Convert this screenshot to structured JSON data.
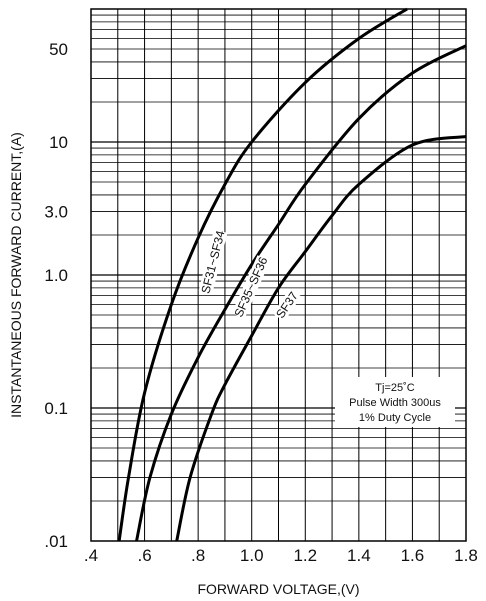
{
  "chart_data": {
    "type": "line",
    "title": "",
    "xlabel": "FORWARD VOLTAGE,(V)",
    "ylabel": "INSTANTANEOUS FORWARD CURRENT,(A)",
    "xlim": [
      0.4,
      1.8
    ],
    "ylim": [
      0.01,
      100
    ],
    "y_scale": "log",
    "grid": true,
    "x_ticks": [
      {
        "value": 0.4,
        "label": ".4"
      },
      {
        "value": 0.6,
        "label": ".6"
      },
      {
        "value": 0.8,
        "label": ".8"
      },
      {
        "value": 1.0,
        "label": "1.0"
      },
      {
        "value": 1.2,
        "label": "1.2"
      },
      {
        "value": 1.4,
        "label": "1.4"
      },
      {
        "value": 1.6,
        "label": "1.6"
      },
      {
        "value": 1.8,
        "label": "1.8"
      }
    ],
    "y_ticks": [
      {
        "value": 0.01,
        "label": ".01"
      },
      {
        "value": 0.1,
        "label": "0.1"
      },
      {
        "value": 1.0,
        "label": "1.0"
      },
      {
        "value": 3.0,
        "label": "3.0"
      },
      {
        "value": 10,
        "label": "10"
      },
      {
        "value": 50,
        "label": "50"
      }
    ],
    "series": [
      {
        "name": "SF31~SF34",
        "points": [
          [
            0.505,
            0.01
          ],
          [
            0.54,
            0.03
          ],
          [
            0.6,
            0.13
          ],
          [
            0.7,
            0.6
          ],
          [
            0.8,
            1.9
          ],
          [
            0.9,
            4.8
          ],
          [
            1.0,
            10
          ],
          [
            1.2,
            28
          ],
          [
            1.4,
            60
          ],
          [
            1.58,
            100
          ]
        ]
      },
      {
        "name": "SF35~SF36",
        "points": [
          [
            0.57,
            0.01
          ],
          [
            0.62,
            0.03
          ],
          [
            0.7,
            0.09
          ],
          [
            0.8,
            0.24
          ],
          [
            0.9,
            0.55
          ],
          [
            1.0,
            1.2
          ],
          [
            1.1,
            2.4
          ],
          [
            1.2,
            4.8
          ],
          [
            1.4,
            15
          ],
          [
            1.6,
            33
          ],
          [
            1.8,
            53
          ]
        ]
      },
      {
        "name": "SF37",
        "points": [
          [
            0.72,
            0.01
          ],
          [
            0.77,
            0.03
          ],
          [
            0.85,
            0.09
          ],
          [
            0.9,
            0.15
          ],
          [
            1.0,
            0.35
          ],
          [
            1.1,
            0.8
          ],
          [
            1.2,
            1.5
          ],
          [
            1.3,
            2.8
          ],
          [
            1.4,
            4.8
          ],
          [
            1.6,
            9.5
          ],
          [
            1.8,
            11
          ]
        ]
      }
    ],
    "annotations": [
      "Tj=25˚C",
      "Pulse Width 300us",
      "1% Duty Cycle"
    ]
  }
}
